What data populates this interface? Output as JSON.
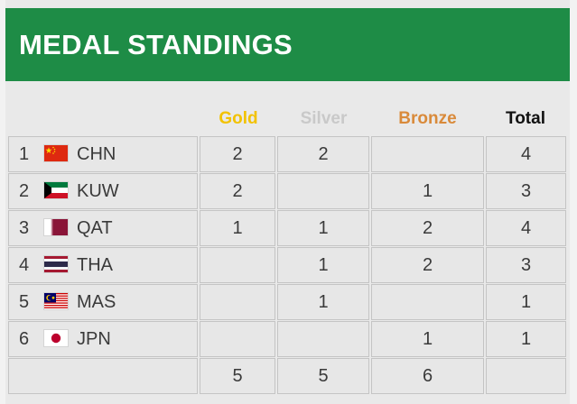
{
  "header": {
    "title": "MEDAL STANDINGS",
    "color": "#1e8c46"
  },
  "columns": {
    "gold": {
      "label": "Gold",
      "color": "#f2c200"
    },
    "silver": {
      "label": "Silver",
      "color": "#c9c9c9"
    },
    "bronze": {
      "label": "Bronze",
      "color": "#d98a3a"
    },
    "total": {
      "label": "Total",
      "color": "#111111"
    }
  },
  "rows": [
    {
      "rank": "1",
      "flag": "china-flag-icon",
      "code": "CHN",
      "gold": "2",
      "silver": "2",
      "bronze": "",
      "total": "4"
    },
    {
      "rank": "2",
      "flag": "kuwait-flag-icon",
      "code": "KUW",
      "gold": "2",
      "silver": "",
      "bronze": "1",
      "total": "3"
    },
    {
      "rank": "3",
      "flag": "qatar-flag-icon",
      "code": "QAT",
      "gold": "1",
      "silver": "1",
      "bronze": "2",
      "total": "4"
    },
    {
      "rank": "4",
      "flag": "thailand-flag-icon",
      "code": "THA",
      "gold": "",
      "silver": "1",
      "bronze": "2",
      "total": "3"
    },
    {
      "rank": "5",
      "flag": "malaysia-flag-icon",
      "code": "MAS",
      "gold": "",
      "silver": "1",
      "bronze": "",
      "total": "1"
    },
    {
      "rank": "6",
      "flag": "japan-flag-icon",
      "code": "JPN",
      "gold": "",
      "silver": "",
      "bronze": "1",
      "total": "1"
    }
  ],
  "totals": {
    "gold": "5",
    "silver": "5",
    "bronze": "6",
    "total": ""
  }
}
